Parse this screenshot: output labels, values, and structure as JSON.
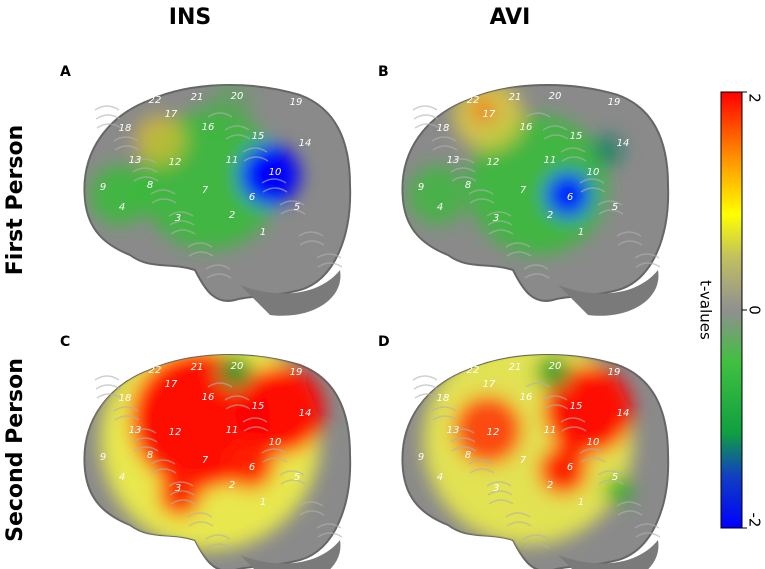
{
  "columns": [
    "INS",
    "AVI"
  ],
  "rows": [
    "First Person",
    "Second Person"
  ],
  "panels": [
    "A",
    "B",
    "C",
    "D"
  ],
  "electrodes": [
    "1",
    "2",
    "3",
    "4",
    "5",
    "6",
    "7",
    "8",
    "9",
    "10",
    "11",
    "12",
    "13",
    "14",
    "15",
    "16",
    "17",
    "18",
    "19",
    "20",
    "21",
    "22"
  ],
  "colorbar": {
    "label": "t-values",
    "lim": [
      -2,
      2
    ],
    "ticks": [
      -2,
      0,
      2
    ]
  }
}
